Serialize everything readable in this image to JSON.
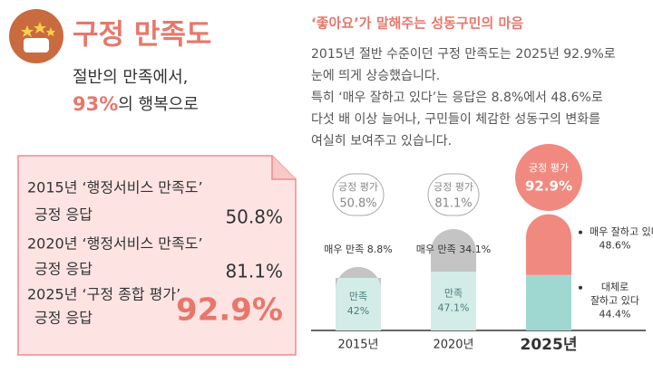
{
  "header": {
    "title": "구정 만족도",
    "subtitle_line1": "절반의 만족에서,",
    "highlight": "93%",
    "subtitle_rest": "의 행복으로"
  },
  "summary": {
    "items": [
      {
        "label": "2015년 ‘행정서비스 만족도’",
        "sublabel": "긍정 응답",
        "value": "50.8%"
      },
      {
        "label": "2020년 ‘행정서비스 만족도’",
        "sublabel": "긍정 응답",
        "value": "81.1%"
      },
      {
        "label": "2025년 ‘구정 종합 평가’",
        "sublabel": "긍정 응답",
        "value": "92.9%"
      }
    ]
  },
  "section": {
    "title": "‘좋아요’가 말해주는 성동구민의 마음",
    "lines": [
      "2015년 절반 수준이던 구정 만족도는 2025년 92.9%로",
      "눈에 띄게 상승했습니다.",
      "특히 ‘매우 잘하고 있다’는 응답은 8.8%에서 48.6%로",
      "다섯 배 이상 늘어나, 구민들이 체감한 성동구의 변화를",
      "여실히 보여주고 있습니다."
    ]
  },
  "chart": {
    "groups": [
      {
        "year": "2015년",
        "total_name": "긍정 평가",
        "total": 50.8,
        "total_label": "50.8%",
        "segments": [
          {
            "label_lines": [
              "만족"
            ],
            "value": 42,
            "value_label": "42%",
            "color": "#d3ece8"
          },
          {
            "label_lines": [
              "매우 만족"
            ],
            "value": 8.8,
            "value_label": "8.8%",
            "color": "#c4c4c4"
          }
        ]
      },
      {
        "year": "2020년",
        "total_name": "긍정 평가",
        "total": 81.1,
        "total_label": "81.1%",
        "segments": [
          {
            "label_lines": [
              "만족"
            ],
            "value": 47.1,
            "value_label": "47.1%",
            "color": "#d3ece8"
          },
          {
            "label_lines": [
              "매우 만족"
            ],
            "value": 34.1,
            "value_label": "34.1%",
            "color": "#c4c4c4"
          }
        ]
      },
      {
        "year": "2025년",
        "total_name": "긍정 평가",
        "total": 92.9,
        "total_label": "92.9%",
        "segments": [
          {
            "label_lines": [
              "대체로",
              "잘하고 있다"
            ],
            "value": 44.4,
            "value_label": "44.4%",
            "color": "#9fd8d1"
          },
          {
            "label_lines": [
              "매우 잘하고 있다"
            ],
            "value": 48.6,
            "value_label": "48.6%",
            "color": "#f08a80"
          }
        ]
      }
    ]
  }
}
